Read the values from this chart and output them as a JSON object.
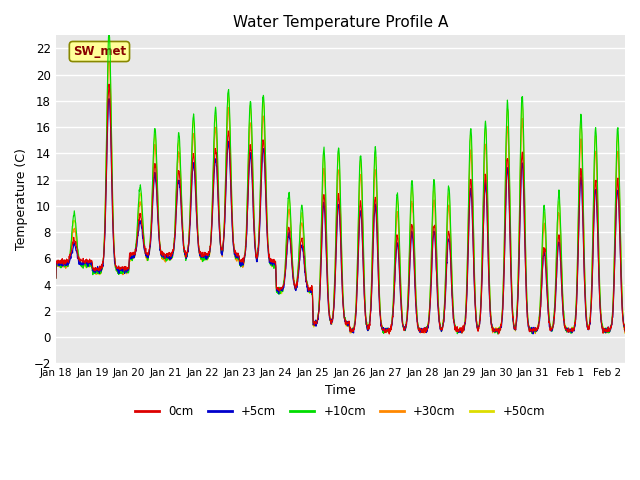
{
  "title": "Water Temperature Profile A",
  "xlabel": "Time",
  "ylabel": "Temperature (C)",
  "xlim": [
    0,
    15.5
  ],
  "ylim": [
    -2,
    23
  ],
  "yticks": [
    -2,
    0,
    2,
    4,
    6,
    8,
    10,
    12,
    14,
    16,
    18,
    20,
    22
  ],
  "xtick_labels": [
    "Jan 18",
    "Jan 19",
    "Jan 20",
    "Jan 21",
    "Jan 22",
    "Jan 23",
    "Jan 24",
    "Jan 25",
    "Jan 26",
    "Jan 27",
    "Jan 28",
    "Jan 29",
    "Jan 30",
    "Jan 31",
    "Feb 1",
    "Feb 2"
  ],
  "legend_labels": [
    "0cm",
    "+5cm",
    "+10cm",
    "+30cm",
    "+50cm"
  ],
  "legend_colors": [
    "#dd0000",
    "#0000cc",
    "#00dd00",
    "#ff8800",
    "#dddd00"
  ],
  "bg_color": "#e8e8e8",
  "grid_color": "#ffffff",
  "annotation_text": "SW_met",
  "annotation_box_color": "#ffff99",
  "annotation_text_color": "#880000",
  "annotation_edge_color": "#888800"
}
